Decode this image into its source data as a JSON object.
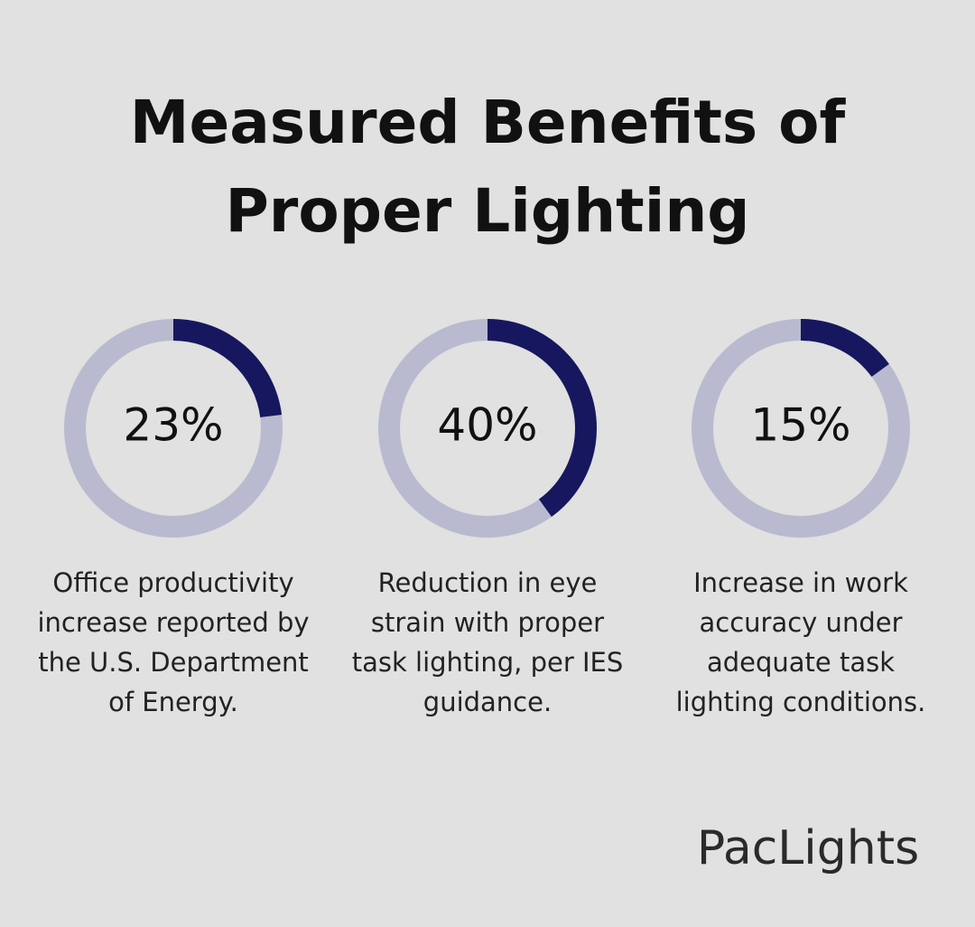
{
  "title": [
    "Measured Benefits of",
    "Proper Lighting"
  ],
  "brand": "PacLights",
  "chart_data": [
    {
      "type": "donut",
      "values": [
        23
      ],
      "value_labels": [
        "23%"
      ],
      "ylim": [
        0,
        100
      ],
      "color": "#17175f",
      "track_color": "#b9bad0",
      "caption": [
        "Office productivity",
        "increase reported by",
        "the U.S. Department",
        "of Energy."
      ]
    },
    {
      "type": "donut",
      "values": [
        40
      ],
      "value_labels": [
        "40%"
      ],
      "ylim": [
        0,
        100
      ],
      "color": "#17175f",
      "track_color": "#b9bad0",
      "caption": [
        "Reduction in eye",
        "strain with proper",
        "task lighting, per IES",
        "guidance."
      ]
    },
    {
      "type": "donut",
      "values": [
        15
      ],
      "value_labels": [
        "15%"
      ],
      "ylim": [
        0,
        100
      ],
      "color": "#17175f",
      "track_color": "#b9bad0",
      "caption": [
        "Increase in work",
        "accuracy under",
        "adequate task",
        "lighting conditions."
      ]
    }
  ]
}
